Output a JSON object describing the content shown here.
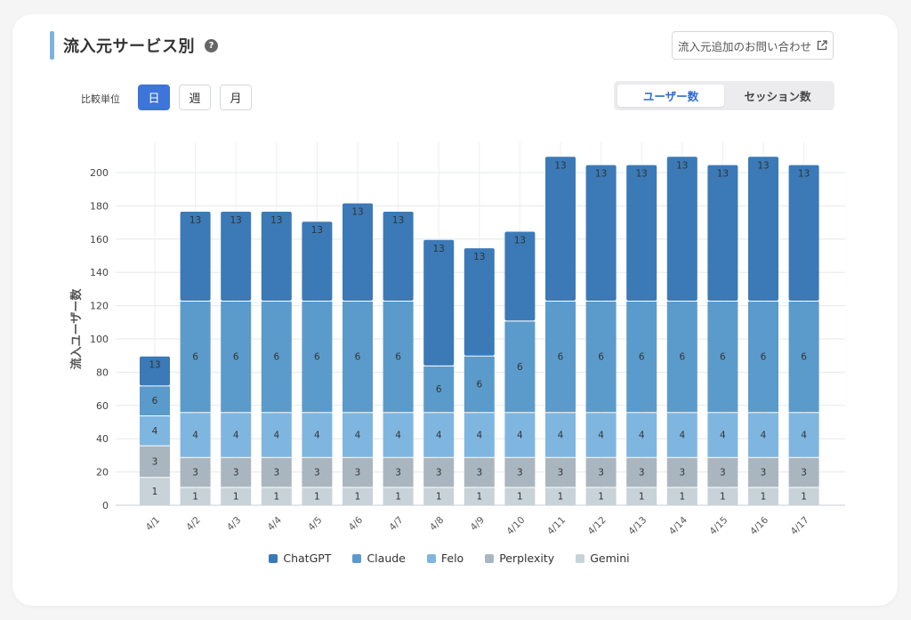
{
  "header": {
    "title": "流入元サービス別",
    "help_icon": "?",
    "contact_label": "流入元追加のお問い合わせ"
  },
  "controls": {
    "unit_label": "比較単位",
    "periods": [
      {
        "label": "日",
        "active": true
      },
      {
        "label": "週",
        "active": false
      },
      {
        "label": "月",
        "active": false
      }
    ],
    "metrics": [
      {
        "label": "ユーザー数",
        "active": true
      },
      {
        "label": "セッション数",
        "active": false
      }
    ]
  },
  "chart_data": {
    "type": "bar",
    "stacked": true,
    "ylabel": "流入ユーザー数",
    "ylim": [
      0,
      210
    ],
    "yticks": [
      0,
      20,
      40,
      60,
      80,
      100,
      120,
      140,
      160,
      180,
      200
    ],
    "grid": true,
    "legend_position": "bottom",
    "categories": [
      "4/1",
      "4/2",
      "4/3",
      "4/4",
      "4/5",
      "4/6",
      "4/7",
      "4/8",
      "4/9",
      "4/10",
      "4/11",
      "4/12",
      "4/13",
      "4/14",
      "4/15",
      "4/16",
      "4/17"
    ],
    "series": [
      {
        "name": "Gemini",
        "color": "#c8d2d9",
        "values": [
          17,
          11,
          11,
          11,
          11,
          11,
          11,
          11,
          11,
          11,
          11,
          11,
          11,
          11,
          11,
          11,
          11
        ],
        "labels": [
          1,
          1,
          1,
          1,
          1,
          1,
          1,
          1,
          1,
          1,
          1,
          1,
          1,
          1,
          1,
          1,
          1
        ]
      },
      {
        "name": "Perplexity",
        "color": "#aab6bf",
        "values": [
          19,
          18,
          18,
          18,
          18,
          18,
          18,
          18,
          18,
          18,
          18,
          18,
          18,
          18,
          18,
          18,
          18
        ],
        "labels": [
          3,
          3,
          3,
          3,
          3,
          3,
          3,
          3,
          3,
          3,
          3,
          3,
          3,
          3,
          3,
          3,
          3
        ]
      },
      {
        "name": "Felo",
        "color": "#7fb6e0",
        "values": [
          18,
          27,
          27,
          27,
          27,
          27,
          27,
          27,
          27,
          27,
          27,
          27,
          27,
          27,
          27,
          27,
          27
        ],
        "labels": [
          4,
          4,
          4,
          4,
          4,
          4,
          4,
          4,
          4,
          4,
          4,
          4,
          4,
          4,
          4,
          4,
          4
        ]
      },
      {
        "name": "Claude",
        "color": "#5b9bcb",
        "values": [
          18,
          67,
          67,
          67,
          67,
          67,
          67,
          28,
          34,
          55,
          67,
          67,
          67,
          67,
          67,
          67,
          67
        ],
        "labels": [
          6,
          6,
          6,
          6,
          6,
          6,
          6,
          6,
          6,
          6,
          6,
          6,
          6,
          6,
          6,
          6,
          6
        ]
      },
      {
        "name": "ChatGPT",
        "color": "#3b7ab6",
        "values": [
          18,
          54,
          54,
          54,
          48,
          59,
          54,
          76,
          65,
          54,
          87,
          82,
          82,
          87,
          82,
          87,
          82
        ],
        "labels": [
          13,
          13,
          13,
          13,
          13,
          13,
          13,
          13,
          13,
          13,
          13,
          13,
          13,
          13,
          13,
          13,
          13
        ]
      }
    ]
  },
  "legend": [
    {
      "name": "ChatGPT",
      "color": "#3b7ab6"
    },
    {
      "name": "Claude",
      "color": "#5b9bcb"
    },
    {
      "name": "Felo",
      "color": "#7fb6e0"
    },
    {
      "name": "Perplexity",
      "color": "#aab6bf"
    },
    {
      "name": "Gemini",
      "color": "#c8d2d9"
    }
  ]
}
